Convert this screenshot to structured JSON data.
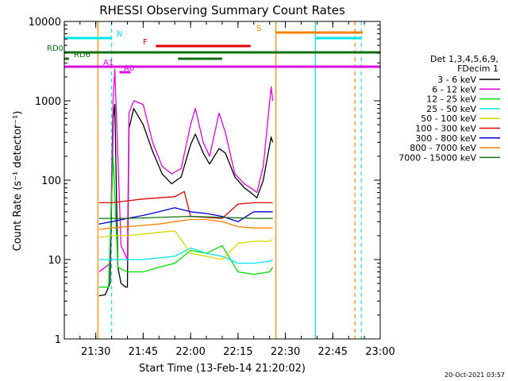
{
  "chart_data": {
    "type": "line",
    "title": "RHESSI Observing Summary Count Rates",
    "xlabel": "Start Time (13-Feb-14 21:20:02)",
    "ylabel": "Count Rate (s⁻¹ detector⁻¹)",
    "yscale": "log",
    "ylim": [
      1,
      10000
    ],
    "xlim": [
      "21:20:02",
      "23:00:00"
    ],
    "x_ticks": [
      "21:30",
      "21:45",
      "22:00",
      "22:15",
      "22:30",
      "22:45",
      "23:00"
    ],
    "y_ticks": [
      "1",
      "10",
      "100",
      "1000",
      "10000"
    ],
    "timestamp": "20-Oct-2021 03:57",
    "legend": {
      "placement": "right",
      "header": [
        "Det 1,3,4,5,6,9,",
        "FDecim 1"
      ],
      "entries": [
        {
          "label": "3 - 6 keV",
          "color": "#000000"
        },
        {
          "label": "6 - 12 keV",
          "color": "#e000e0"
        },
        {
          "label": "12 - 25 keV",
          "color": "#00e000"
        },
        {
          "label": "25 - 50 keV",
          "color": "#00e8e8"
        },
        {
          "label": "50 - 100 keV",
          "color": "#d8d800"
        },
        {
          "label": "100 - 300 keV",
          "color": "#e00000"
        },
        {
          "label": "300 - 800 keV",
          "color": "#0000d0"
        },
        {
          "label": "800 - 7000 keV",
          "color": "#ff8000"
        },
        {
          "label": "7000 - 15000 keV",
          "color": "#107010"
        }
      ]
    },
    "flags": [
      {
        "label": "N",
        "color": "#00e8e8",
        "segments": [
          [
            "21:20:02",
            "21:35:00"
          ],
          [
            "22:39:30",
            "22:54:00"
          ]
        ]
      },
      {
        "label": "S",
        "color": "#ff8000",
        "segments": [
          [
            "22:27:00",
            "22:54:30"
          ]
        ]
      },
      {
        "label": "F",
        "color": "#e00000",
        "segments": [
          [
            "21:49:00",
            "22:19:00"
          ]
        ]
      },
      {
        "label": "RD0",
        "color": "#107010",
        "segments": [
          [
            "21:20:02",
            "23:00:00"
          ]
        ]
      },
      {
        "label": "RD6",
        "color": "#107010",
        "segments": [
          [
            "21:20:02",
            "21:21:30"
          ],
          [
            "21:56:00",
            "22:10:00"
          ]
        ]
      },
      {
        "label": "A1",
        "color": "#e000e0",
        "segments": [
          [
            "21:20:02",
            "23:00:00"
          ]
        ]
      },
      {
        "label": "A0",
        "color": "#e000e0",
        "segments": [
          [
            "21:37:30",
            "21:41:00"
          ]
        ]
      }
    ],
    "vertical_markers": [
      {
        "time": "21:20:02",
        "color": "#00e8e8",
        "style": "solid"
      },
      {
        "time": "21:30:40",
        "color": "#ff8000",
        "style": "solid"
      },
      {
        "time": "21:35:00",
        "color": "#00e8e8",
        "style": "dashed"
      },
      {
        "time": "22:27:00",
        "color": "#ff8000",
        "style": "solid"
      },
      {
        "time": "22:39:30",
        "color": "#00e8e8",
        "style": "solid"
      },
      {
        "time": "22:52:00",
        "color": "#ff8000",
        "style": "dashed"
      },
      {
        "time": "22:54:00",
        "color": "#00e8e8",
        "style": "dashed"
      }
    ],
    "series": [
      {
        "name": "3 - 6 keV",
        "color": "#000000",
        "points": [
          [
            "21:31:00",
            3.5
          ],
          [
            "21:33:00",
            3.6
          ],
          [
            "21:34:30",
            5
          ],
          [
            "21:35:30",
            600
          ],
          [
            "21:36:00",
            900
          ],
          [
            "21:37:00",
            8
          ],
          [
            "21:38:00",
            5
          ],
          [
            "21:39:30",
            4.5
          ],
          [
            "21:40:00",
            4.5
          ],
          [
            "21:40:30",
            450
          ],
          [
            "21:42:00",
            800
          ],
          [
            "21:45:00",
            500
          ],
          [
            "21:48:00",
            230
          ],
          [
            "21:51:00",
            120
          ],
          [
            "21:54:00",
            90
          ],
          [
            "21:57:00",
            110
          ],
          [
            "22:00:00",
            280
          ],
          [
            "22:01:30",
            380
          ],
          [
            "22:04:00",
            220
          ],
          [
            "22:06:00",
            160
          ],
          [
            "22:09:00",
            250
          ],
          [
            "22:11:00",
            220
          ],
          [
            "22:14:00",
            110
          ],
          [
            "22:17:00",
            80
          ],
          [
            "22:19:00",
            70
          ],
          [
            "22:21:00",
            60
          ],
          [
            "22:23:00",
            100
          ],
          [
            "22:25:30",
            350
          ],
          [
            "22:26:00",
            300
          ]
        ]
      },
      {
        "name": "6 - 12 keV",
        "color": "#e000e0",
        "points": [
          [
            "21:31:00",
            7
          ],
          [
            "21:33:00",
            8
          ],
          [
            "21:34:30",
            9
          ],
          [
            "21:35:30",
            1100
          ],
          [
            "21:36:00",
            2500
          ],
          [
            "21:37:00",
            200
          ],
          [
            "21:38:00",
            15
          ],
          [
            "21:40:00",
            10
          ],
          [
            "21:40:30",
            700
          ],
          [
            "21:42:00",
            1000
          ],
          [
            "21:45:00",
            900
          ],
          [
            "21:48:00",
            300
          ],
          [
            "21:51:00",
            150
          ],
          [
            "21:54:00",
            120
          ],
          [
            "21:57:00",
            140
          ],
          [
            "22:00:00",
            500
          ],
          [
            "22:01:30",
            800
          ],
          [
            "22:04:00",
            300
          ],
          [
            "22:06:00",
            200
          ],
          [
            "22:09:00",
            700
          ],
          [
            "22:11:00",
            400
          ],
          [
            "22:14:00",
            120
          ],
          [
            "22:17:00",
            90
          ],
          [
            "22:19:00",
            80
          ],
          [
            "22:21:00",
            70
          ],
          [
            "22:23:00",
            150
          ],
          [
            "22:25:30",
            1500
          ],
          [
            "22:26:00",
            1000
          ]
        ]
      },
      {
        "name": "12 - 25 keV",
        "color": "#00e000",
        "points": [
          [
            "21:31:00",
            4.5
          ],
          [
            "21:34:00",
            4.5
          ],
          [
            "21:35:30",
            200
          ],
          [
            "21:37:00",
            8
          ],
          [
            "21:40:00",
            7
          ],
          [
            "21:45:00",
            7
          ],
          [
            "21:50:00",
            8
          ],
          [
            "21:55:00",
            9
          ],
          [
            "22:00:00",
            13
          ],
          [
            "22:05:00",
            12
          ],
          [
            "22:10:00",
            15
          ],
          [
            "22:15:00",
            7
          ],
          [
            "22:20:00",
            6.5
          ],
          [
            "22:25:00",
            7
          ],
          [
            "22:26:00",
            8
          ]
        ]
      },
      {
        "name": "25 - 50 keV",
        "color": "#00e8e8",
        "points": [
          [
            "21:31:00",
            10
          ],
          [
            "21:35:00",
            10
          ],
          [
            "21:40:00",
            10
          ],
          [
            "21:45:00",
            10
          ],
          [
            "21:50:00",
            10.5
          ],
          [
            "21:55:00",
            11
          ],
          [
            "22:00:00",
            14
          ],
          [
            "22:05:00",
            12
          ],
          [
            "22:10:00",
            11
          ],
          [
            "22:15:00",
            9
          ],
          [
            "22:20:00",
            9
          ],
          [
            "22:25:00",
            9.5
          ],
          [
            "22:26:00",
            10
          ]
        ]
      },
      {
        "name": "50 - 100 keV",
        "color": "#d8d800",
        "points": [
          [
            "21:31:00",
            19
          ],
          [
            "21:35:00",
            20
          ],
          [
            "21:40:00",
            20
          ],
          [
            "21:45:00",
            21
          ],
          [
            "21:50:00",
            22
          ],
          [
            "21:55:00",
            23
          ],
          [
            "22:00:00",
            12
          ],
          [
            "22:05:00",
            11
          ],
          [
            "22:10:00",
            10
          ],
          [
            "22:15:00",
            16
          ],
          [
            "22:20:00",
            17
          ],
          [
            "22:25:00",
            17
          ],
          [
            "22:26:00",
            18
          ]
        ]
      },
      {
        "name": "100 - 300 keV",
        "color": "#e00000",
        "points": [
          [
            "21:31:00",
            52
          ],
          [
            "21:35:00",
            52
          ],
          [
            "21:40:00",
            55
          ],
          [
            "21:45:00",
            58
          ],
          [
            "21:50:00",
            60
          ],
          [
            "21:55:00",
            62
          ],
          [
            "21:58:00",
            72
          ],
          [
            "22:00:00",
            35
          ],
          [
            "22:05:00",
            34
          ],
          [
            "22:10:00",
            33
          ],
          [
            "22:15:00",
            50
          ],
          [
            "22:20:00",
            52
          ],
          [
            "22:25:00",
            52
          ],
          [
            "22:26:00",
            52
          ]
        ]
      },
      {
        "name": "300 - 800 keV",
        "color": "#0000d0",
        "points": [
          [
            "21:31:00",
            28
          ],
          [
            "21:35:00",
            30
          ],
          [
            "21:40:00",
            33
          ],
          [
            "21:45:00",
            36
          ],
          [
            "21:50:00",
            40
          ],
          [
            "21:55:00",
            45
          ],
          [
            "22:00:00",
            40
          ],
          [
            "22:05:00",
            38
          ],
          [
            "22:10:00",
            35
          ],
          [
            "22:15:00",
            30
          ],
          [
            "22:20:00",
            40
          ],
          [
            "22:25:00",
            40
          ],
          [
            "22:26:00",
            40
          ]
        ]
      },
      {
        "name": "800 - 7000 keV",
        "color": "#ff8000",
        "points": [
          [
            "21:31:00",
            24
          ],
          [
            "21:35:00",
            25
          ],
          [
            "21:40:00",
            26
          ],
          [
            "21:45:00",
            27
          ],
          [
            "21:50:00",
            28
          ],
          [
            "21:55:00",
            30
          ],
          [
            "22:00:00",
            32
          ],
          [
            "22:05:00",
            32
          ],
          [
            "22:10:00",
            30
          ],
          [
            "22:15:00",
            26
          ],
          [
            "22:20:00",
            25
          ],
          [
            "22:25:00",
            25
          ],
          [
            "22:26:00",
            25
          ]
        ]
      },
      {
        "name": "7000 - 15000 keV",
        "color": "#107010",
        "points": [
          [
            "21:31:00",
            33
          ],
          [
            "21:40:00",
            33
          ],
          [
            "21:50:00",
            34
          ],
          [
            "22:00:00",
            35
          ],
          [
            "22:10:00",
            34
          ],
          [
            "22:20:00",
            33
          ],
          [
            "22:26:00",
            33
          ]
        ]
      }
    ]
  }
}
